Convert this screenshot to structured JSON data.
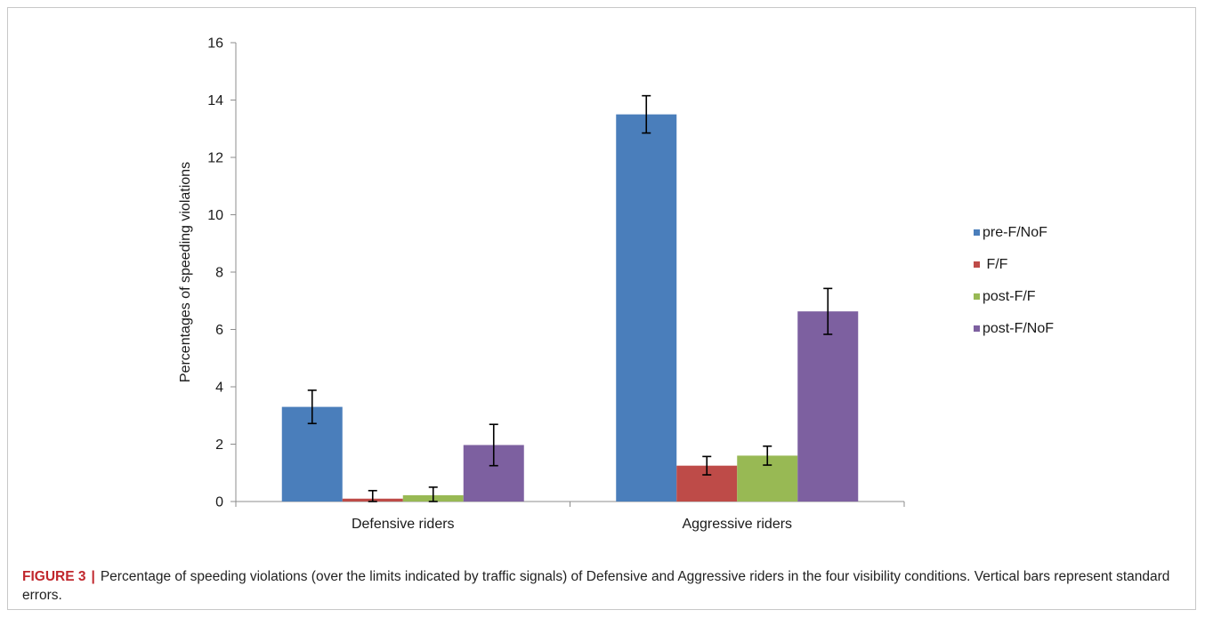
{
  "chart_data": {
    "type": "bar",
    "categories": [
      "Defensive riders",
      "Aggressive riders"
    ],
    "ylabel": "Percentages of speeding violations",
    "xlabel": "",
    "ylim": [
      0,
      16
    ],
    "yticks": [
      0,
      2,
      4,
      6,
      8,
      10,
      12,
      14,
      16
    ],
    "grid": false,
    "legend_position": "right",
    "error_bars": "standard errors",
    "series": [
      {
        "name": "pre-F/NoF",
        "color": "#4a7ebb",
        "values": [
          3.3,
          13.5
        ],
        "errors": [
          0.58,
          0.65
        ]
      },
      {
        "name": " F/F",
        "color": "#be4b48",
        "values": [
          0.1,
          1.25
        ],
        "errors": [
          0.28,
          0.32
        ]
      },
      {
        "name": "post-F/F",
        "color": "#98b954",
        "values": [
          0.22,
          1.6
        ],
        "errors": [
          0.28,
          0.33
        ]
      },
      {
        "name": "post-F/NoF",
        "color": "#7d60a0",
        "values": [
          1.97,
          6.63
        ],
        "errors": [
          0.72,
          0.8
        ]
      }
    ]
  },
  "caption": {
    "label": "FIGURE 3",
    "separator": "|",
    "text": "Percentage of speeding violations (over the limits indicated by traffic signals) of Defensive and Aggressive riders in the four visibility conditions. Vertical bars represent standard errors."
  }
}
